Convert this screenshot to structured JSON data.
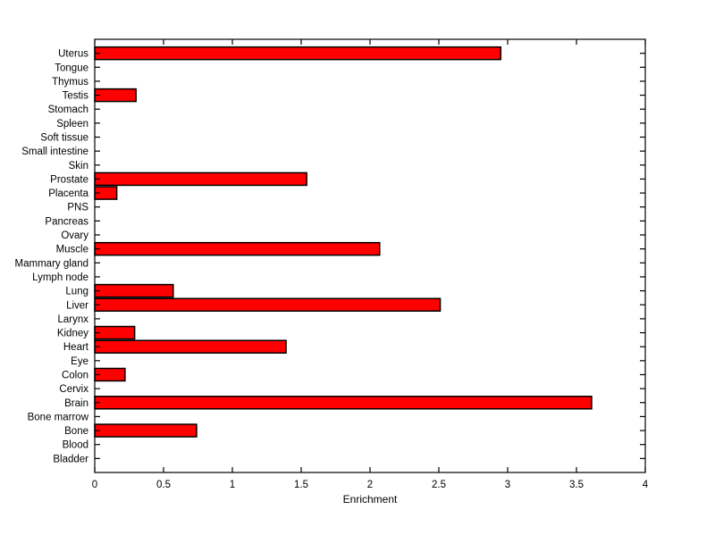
{
  "chart_data": {
    "type": "bar",
    "orientation": "horizontal",
    "xlabel": "Enrichment",
    "ylabel": "",
    "categories_top_to_bottom": [
      "Uterus",
      "Tongue",
      "Thymus",
      "Testis",
      "Stomach",
      "Spleen",
      "Soft tissue",
      "Small intestine",
      "Skin",
      "Prostate",
      "Placenta",
      "PNS",
      "Pancreas",
      "Ovary",
      "Muscle",
      "Mammary gland",
      "Lymph node",
      "Lung",
      "Liver",
      "Larynx",
      "Kidney",
      "Heart",
      "Eye",
      "Colon",
      "Cervix",
      "Brain",
      "Bone marrow",
      "Bone",
      "Blood",
      "Bladder"
    ],
    "values": [
      2.95,
      0,
      0,
      0.3,
      0,
      0,
      0,
      0,
      0,
      1.54,
      0.16,
      0,
      0,
      0,
      2.07,
      0,
      0,
      0.57,
      2.51,
      0,
      0.29,
      1.39,
      0,
      0.22,
      0,
      3.61,
      0,
      0.74,
      0,
      0
    ],
    "xlim": [
      0,
      4
    ],
    "xticks": [
      0,
      0.5,
      1,
      1.5,
      2,
      2.5,
      3,
      3.5,
      4
    ],
    "xtick_labels": [
      "0",
      "0.5",
      "1",
      "1.5",
      "2",
      "2.5",
      "3",
      "3.5",
      "4"
    ],
    "grid": false,
    "legend": null,
    "bar_color": "#ff0000",
    "bar_edge_color": "#000000",
    "axis_color": "#000000",
    "background_color": "#ffffff"
  }
}
